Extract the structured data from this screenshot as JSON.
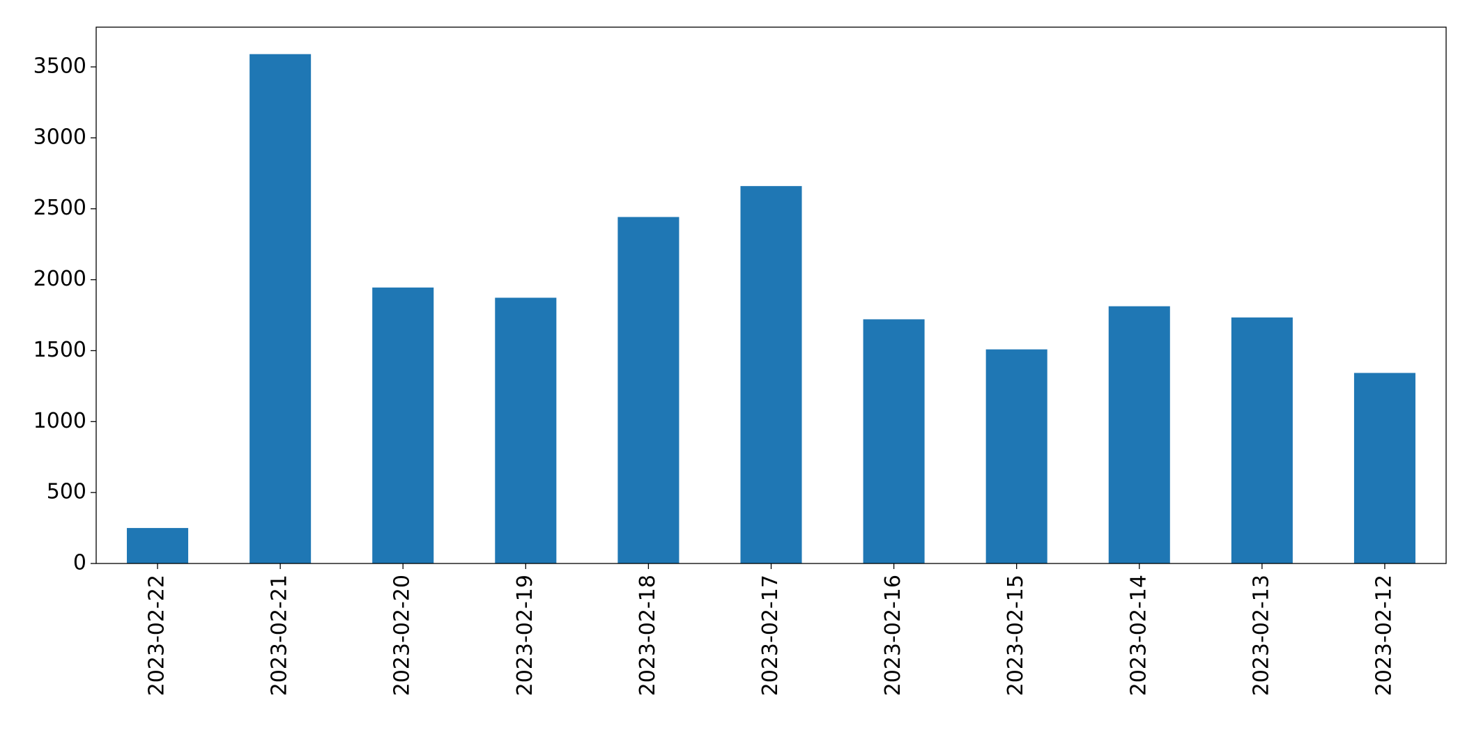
{
  "chart_data": {
    "type": "bar",
    "categories": [
      "2023-02-22",
      "2023-02-21",
      "2023-02-20",
      "2023-02-19",
      "2023-02-18",
      "2023-02-17",
      "2023-02-16",
      "2023-02-15",
      "2023-02-14",
      "2023-02-13",
      "2023-02-12"
    ],
    "values": [
      250,
      3590,
      1945,
      1873,
      2442,
      2660,
      1721,
      1509,
      1813,
      1734,
      1343
    ],
    "color": "#1f77b4",
    "ylim": [
      0,
      3780
    ],
    "yticks": [
      0,
      500,
      1000,
      1500,
      2000,
      2500,
      3000,
      3500
    ],
    "grid": false
  }
}
